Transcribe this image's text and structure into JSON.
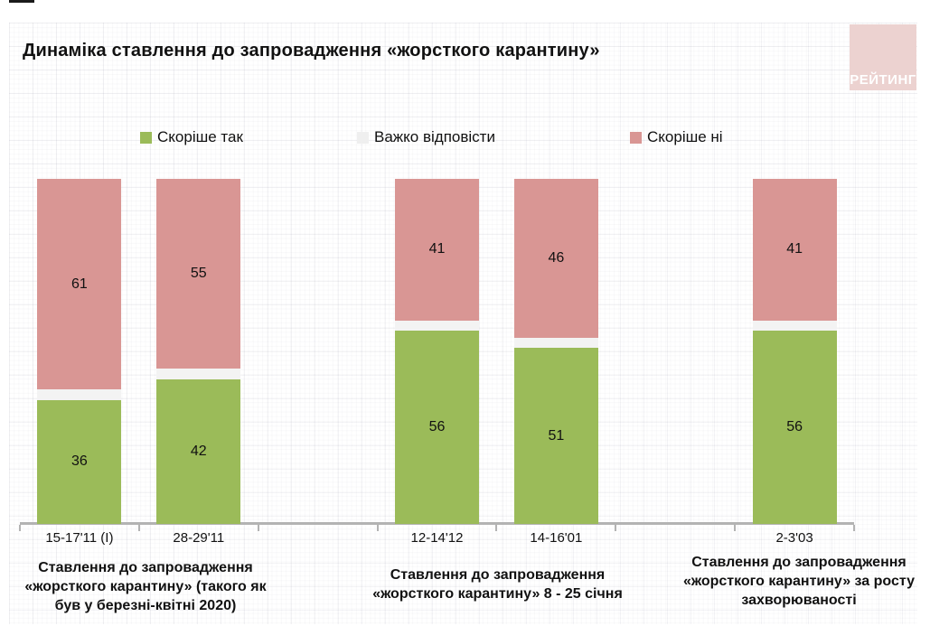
{
  "title": "Динаміка ставлення до запровадження «жорсткого карантину»",
  "logo": {
    "text": "РЕЙТИНГ",
    "bg_color": "#ecd2d0",
    "text_color": "#ffffff"
  },
  "legend": [
    {
      "label": "Скоріше так",
      "color": "#9bbb59"
    },
    {
      "label": "Важко відповісти",
      "color": "#efefef"
    },
    {
      "label": "Скоріше ні",
      "color": "#d99694"
    }
  ],
  "chart_data": {
    "type": "bar",
    "subtype": "stacked-100-percent",
    "title": "Динаміка ставлення до запровадження «жорсткого карантину»",
    "categories": [
      "15-17'11 (I)",
      "28-29'11",
      "12-14'12",
      "14-16'01",
      "2-3'03"
    ],
    "series": [
      {
        "name": "Скоріше так",
        "color": "#9bbb59",
        "labeled": true,
        "values": [
          36,
          42,
          56,
          51,
          56
        ]
      },
      {
        "name": "Важко відповісти",
        "color": "#f3f3f3",
        "labeled": false,
        "values": [
          3,
          3,
          3,
          3,
          3
        ]
      },
      {
        "name": "Скоріше ні",
        "color": "#d99694",
        "labeled": true,
        "values": [
          61,
          55,
          41,
          46,
          41
        ]
      }
    ],
    "groups": [
      {
        "caption": "Ставлення до запровадження «жорсткого карантину» (такого як був у березні-квітні 2020)",
        "categories": [
          "15-17'11 (I)",
          "28-29'11"
        ]
      },
      {
        "caption": "Ставлення до запровадження «жорсткого карантину» 8 - 25 січня",
        "categories": [
          "12-14'12",
          "14-16'01"
        ]
      },
      {
        "caption": "Ставлення до запровадження «жорсткого карантину» за росту захворюваності",
        "categories": [
          "2-3'03"
        ]
      }
    ],
    "ylim": [
      0,
      100
    ],
    "grid": false,
    "legend_position": "top",
    "axis_color": "#b3b3b3"
  }
}
